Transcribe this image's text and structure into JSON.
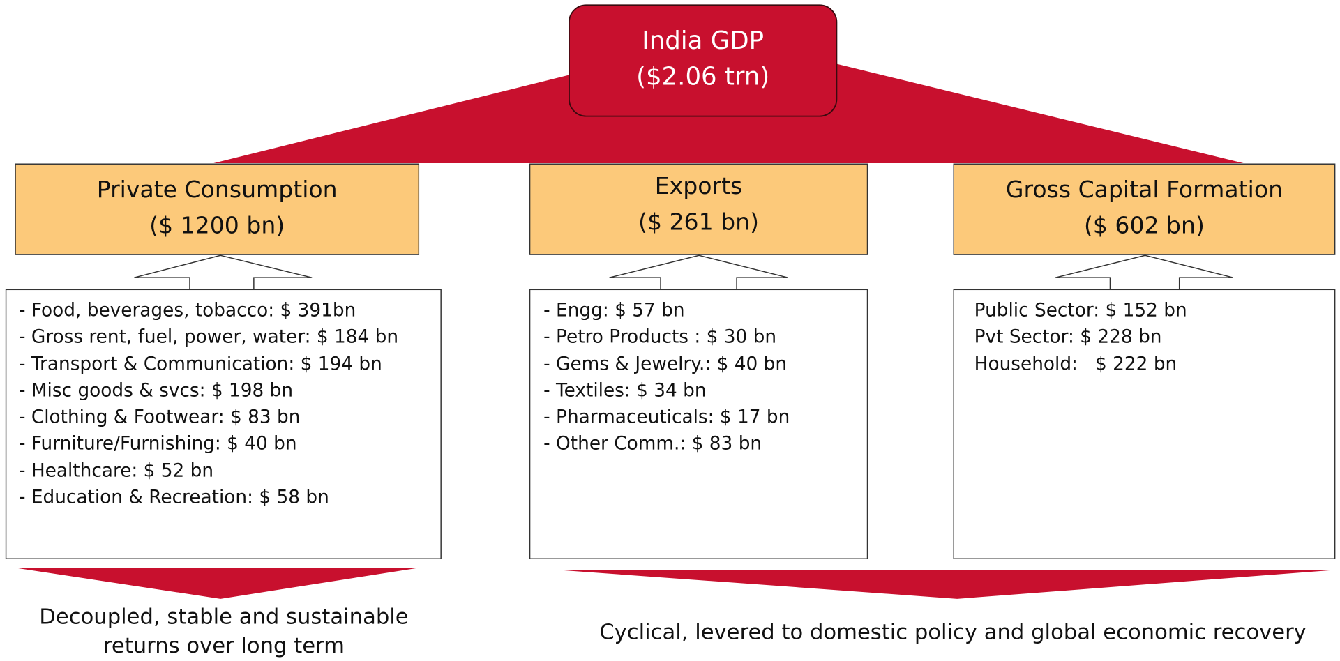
{
  "root": {
    "lines": [
      "India GDP",
      "($2.06 trn)"
    ]
  },
  "components": [
    {
      "title": "Private Consumption",
      "value": "($ 1200 bn)",
      "items": [
        "- Food, beverages, tobacco: $ 391bn",
        "- Gross rent, fuel, power, water: $ 184 bn",
        "- Transport & Communication: $ 194 bn",
        "- Misc goods & svcs: $ 198 bn",
        "- Clothing & Footwear: $ 83 bn",
        "- Furniture/Furnishing: $ 40 bn",
        "- Healthcare: $ 52 bn",
        "- Education & Recreation: $ 58 bn"
      ]
    },
    {
      "title": "Exports",
      "value": "($ 261 bn)",
      "items": [
        "- Engg: $ 57 bn",
        "- Petro Products : $ 30 bn",
        "- Gems & Jewelry.: $ 40 bn",
        "- Textiles: $ 34 bn",
        "- Pharmaceuticals: $ 17 bn",
        "- Other Comm.: $ 83 bn"
      ]
    },
    {
      "title": "Gross Capital Formation",
      "value": "($ 602 bn)",
      "items": [
        "Public Sector: $ 152 bn",
        "Pvt Sector: $ 228 bn",
        "Household:   $ 222 bn"
      ]
    }
  ],
  "conclusions": [
    {
      "lines": [
        "Decoupled, stable and sustainable",
        "returns over long term"
      ]
    },
    {
      "lines": [
        "Cyclical, levered to domestic policy and global economic recovery"
      ]
    }
  ]
}
